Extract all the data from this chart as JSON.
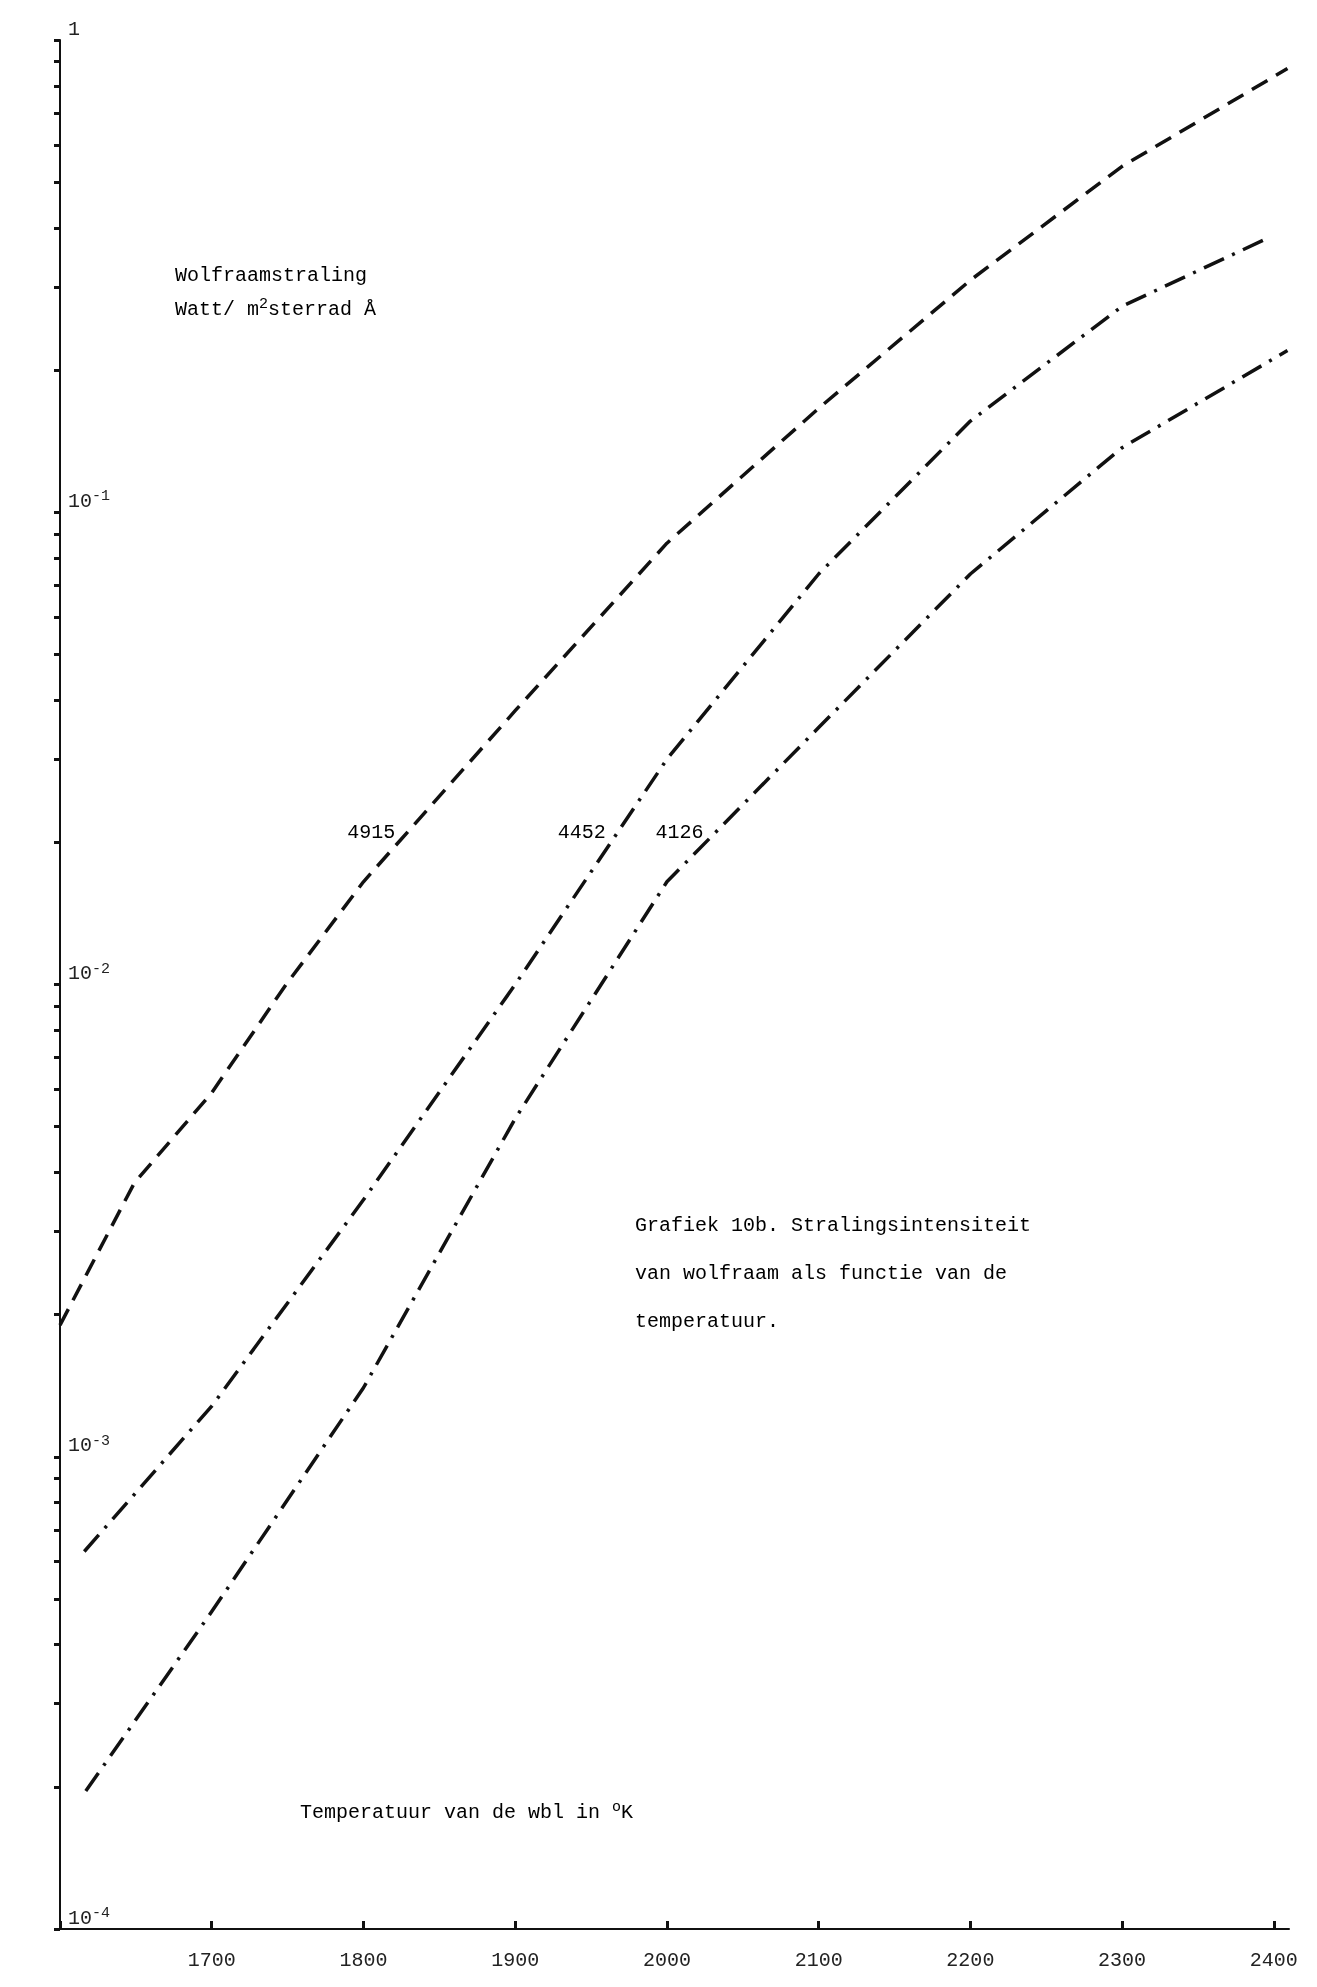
{
  "chart_data": {
    "type": "line",
    "log": "y",
    "xlabel": "Temperatuur van de wbl in $^{o}$K",
    "ylabel": "Wolfraamstraling\nWatt/ m$^{2}$sterrad Å",
    "xlim": [
      1600,
      2410
    ],
    "xticks": [
      {
        "value": 1600,
        "label": null
      },
      1700,
      1800,
      1900,
      2000,
      2100,
      2200,
      2300,
      2400
    ],
    "ylim": [
      0.0001,
      1
    ],
    "yticks": [
      {
        "value": 0.0001,
        "label": "10$^{-4}$"
      },
      {
        "value": 0.0002,
        "label": null
      },
      {
        "value": 0.0003,
        "label": null
      },
      {
        "value": 0.0004,
        "label": null
      },
      {
        "value": 0.0005,
        "label": null
      },
      {
        "value": 0.0006,
        "label": null
      },
      {
        "value": 0.0007,
        "label": null
      },
      {
        "value": 0.0008,
        "label": null
      },
      {
        "value": 0.0009,
        "label": null
      },
      {
        "value": 0.001,
        "label": "10$^{-3}$"
      },
      {
        "value": 0.002,
        "label": null
      },
      {
        "value": 0.003,
        "label": null
      },
      {
        "value": 0.004,
        "label": null
      },
      {
        "value": 0.005,
        "label": null
      },
      {
        "value": 0.006,
        "label": null
      },
      {
        "value": 0.007,
        "label": null
      },
      {
        "value": 0.008,
        "label": null
      },
      {
        "value": 0.009,
        "label": null
      },
      {
        "value": 0.01,
        "label": "10$^{-2}$"
      },
      {
        "value": 0.02,
        "label": null
      },
      {
        "value": 0.03,
        "label": null
      },
      {
        "value": 0.04,
        "label": null
      },
      {
        "value": 0.05,
        "label": null
      },
      {
        "value": 0.06,
        "label": null
      },
      {
        "value": 0.07,
        "label": null
      },
      {
        "value": 0.08,
        "label": null
      },
      {
        "value": 0.09,
        "label": null
      },
      {
        "value": 0.1,
        "label": "10$^{-1}$"
      },
      {
        "value": 0.2,
        "label": null
      },
      {
        "value": 0.3,
        "label": null
      },
      {
        "value": 0.4,
        "label": null
      },
      {
        "value": 0.5,
        "label": null
      },
      {
        "value": 0.6,
        "label": null
      },
      {
        "value": 0.7,
        "label": null
      },
      {
        "value": 0.8,
        "label": null
      },
      {
        "value": 0.9,
        "label": null
      },
      1
    ],
    "grid": false,
    "marker": "none",
    "series": [
      {
        "name": "4915",
        "color": "#111111",
        "line_style": "dashed",
        "x": [
          1600,
          1649,
          1700,
          1749,
          1800,
          1900,
          2000,
          2100,
          2200,
          2300,
          2409
        ],
        "values": [
          0.0019,
          0.0038,
          0.0059,
          0.01,
          0.0165,
          0.038,
          0.086,
          0.166,
          0.31,
          0.54,
          0.87
        ]
      },
      {
        "name": "4452",
        "color": "#111111",
        "line_style": "dashdot",
        "x": [
          1616,
          1700,
          1800,
          1900,
          2000,
          2100,
          2200,
          2300,
          2394
        ],
        "values": [
          0.00063,
          0.00128,
          0.0035,
          0.01,
          0.03,
          0.074,
          0.156,
          0.273,
          0.378
        ]
      },
      {
        "name": "4126",
        "color": "#111111",
        "line_style": "dashdot",
        "x": [
          1617,
          1700,
          1800,
          1900,
          2000,
          2100,
          2200,
          2300,
          2409
        ],
        "values": [
          0.000196,
          0.00047,
          0.0014,
          0.0052,
          0.0165,
          0.035,
          0.074,
          0.137,
          0.22
        ]
      }
    ],
    "annotations": [
      "Grafiek 10b. Stralingsintensiteit\nvan wolfraam als functie van de\ntemperatuur."
    ]
  }
}
